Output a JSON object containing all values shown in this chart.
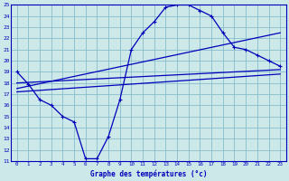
{
  "xlabel": "Graphe des températures (°c)",
  "bg_color": "#cce8e8",
  "grid_color": "#88bbcc",
  "line_color": "#0000bb",
  "xlim": [
    -0.5,
    23.5
  ],
  "ylim": [
    11,
    25
  ],
  "xticks": [
    0,
    1,
    2,
    3,
    4,
    5,
    6,
    7,
    8,
    9,
    10,
    11,
    12,
    13,
    14,
    15,
    16,
    17,
    18,
    19,
    20,
    21,
    22,
    23
  ],
  "yticks": [
    11,
    12,
    13,
    14,
    15,
    16,
    17,
    18,
    19,
    20,
    21,
    22,
    23,
    24,
    25
  ],
  "curve1_x": [
    0,
    1,
    2,
    3,
    4,
    5,
    6,
    7,
    8,
    9,
    10,
    11,
    12,
    13,
    14,
    15,
    16,
    17,
    18,
    19,
    20,
    21,
    22,
    23
  ],
  "curve1_y": [
    19.0,
    17.9,
    16.5,
    16.0,
    15.0,
    14.5,
    11.2,
    11.2,
    13.2,
    16.5,
    21.0,
    22.5,
    23.5,
    24.8,
    25.0,
    25.0,
    24.5,
    24.0,
    22.5,
    21.2,
    21.0,
    20.5,
    20.0,
    19.5
  ],
  "line1_x": [
    0,
    23
  ],
  "line1_y": [
    18.0,
    19.2
  ],
  "line2_x": [
    0,
    23
  ],
  "line2_y": [
    17.2,
    18.8
  ],
  "line3_x": [
    0,
    23
  ],
  "line3_y": [
    17.5,
    22.5
  ]
}
